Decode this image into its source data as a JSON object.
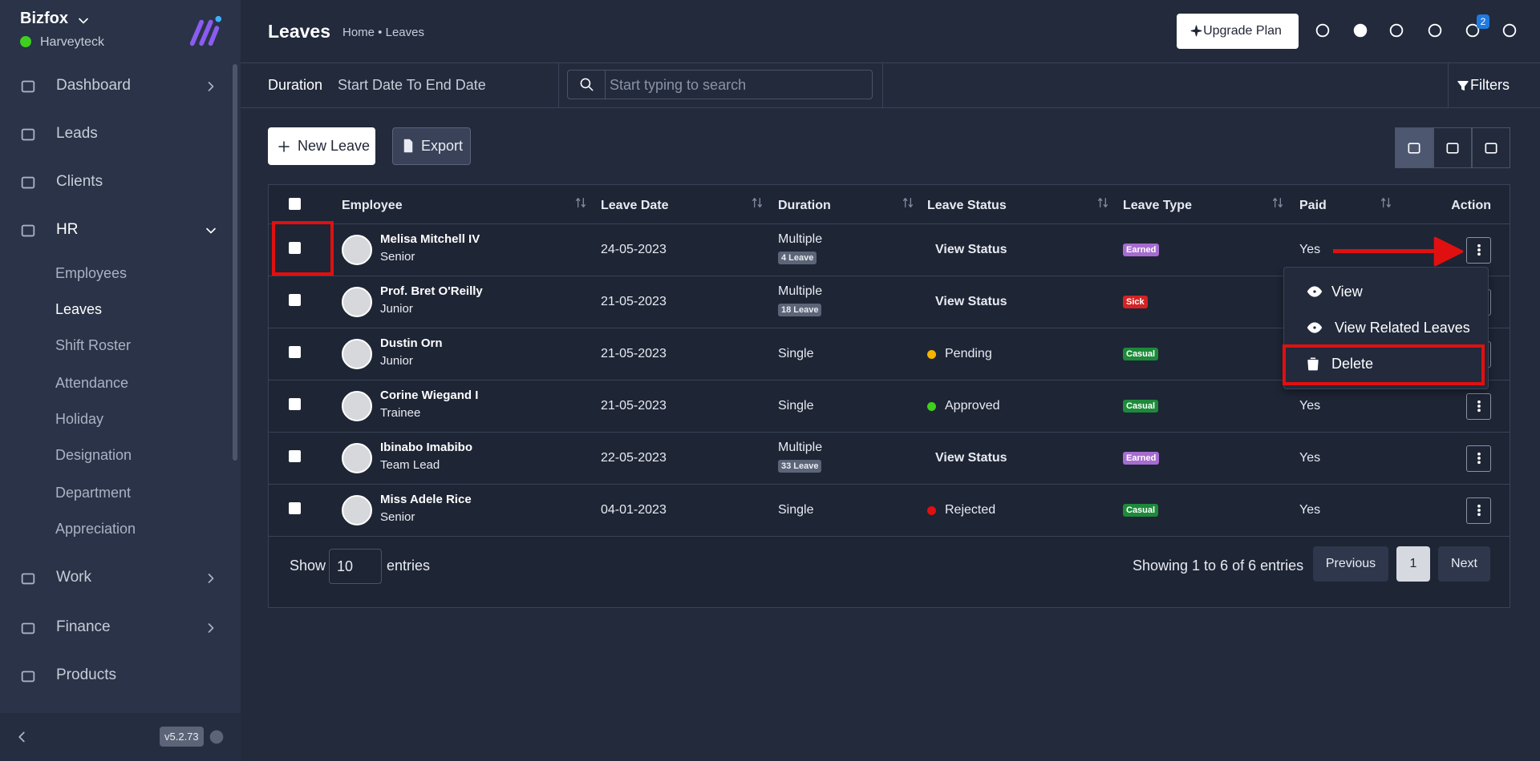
{
  "sidebar": {
    "brand": "Bizfox",
    "user": "Harveyteck",
    "menu": [
      "Dashboard",
      "Leads",
      "Clients",
      "HR"
    ],
    "hr_submenu": [
      "Employees",
      "Leaves",
      "Shift Roster",
      "Attendance",
      "Holiday",
      "Designation",
      "Department",
      "Appreciation"
    ],
    "menu_after": [
      "Work",
      "Finance",
      "Products"
    ],
    "version": "v5.2.73"
  },
  "header": {
    "title": "Leaves",
    "breadcrumb": "Home • Leaves",
    "upgrade": "Upgrade Plan",
    "notifications": "2"
  },
  "filters": {
    "duration_label": "Duration",
    "duration_value": "Start Date To End Date",
    "search_placeholder": "Start typing to search",
    "filters": "Filters"
  },
  "toolbar": {
    "new_leave": "New Leave",
    "export": "Export"
  },
  "table": {
    "columns": [
      "Employee",
      "Leave Date",
      "Duration",
      "Leave Status",
      "Leave Type",
      "Paid",
      "Action"
    ],
    "rows": [
      {
        "name": "Melisa Mitchell IV",
        "role": "Senior",
        "date": "24-05-2023",
        "duration": "Multiple",
        "leaves": "4 Leave",
        "status": "View Status",
        "type": "Earned",
        "type_color": "#a66ccf",
        "paid": "Yes"
      },
      {
        "name": "Prof. Bret O'Reilly",
        "role": "Junior",
        "date": "21-05-2023",
        "duration": "Multiple",
        "leaves": "18 Leave",
        "status": "View Status",
        "type": "Sick",
        "type_color": "#d42323"
      },
      {
        "name": "Dustin Orn",
        "role": "Junior",
        "date": "21-05-2023",
        "duration": "Single",
        "status": "Pending",
        "dot": "#f5b400",
        "type": "Casual",
        "type_color": "#1d8a3a"
      },
      {
        "name": "Corine Wiegand I",
        "role": "Trainee",
        "date": "21-05-2023",
        "duration": "Single",
        "status": "Approved",
        "dot": "#3fcf1f",
        "type": "Casual",
        "type_color": "#1d8a3a",
        "paid": "Yes"
      },
      {
        "name": "Ibinabo Imabibo",
        "role": "Team Lead",
        "date": "22-05-2023",
        "duration": "Multiple",
        "leaves": "33 Leave",
        "status": "View Status",
        "type": "Earned",
        "type_color": "#a66ccf",
        "paid": "Yes"
      },
      {
        "name": "Miss Adele Rice",
        "role": "Senior",
        "date": "04-01-2023",
        "duration": "Single",
        "status": "Rejected",
        "dot": "#e01010",
        "type": "Casual",
        "type_color": "#1d8a3a",
        "paid": "Yes"
      }
    ]
  },
  "dropdown": [
    "View",
    "View Related Leaves",
    "Delete"
  ],
  "footer": {
    "show": "Show",
    "entries_value": "10",
    "entries": "entries",
    "info": "Showing 1 to 6 of 6 entries",
    "previous": "Previous",
    "page": "1",
    "next": "Next"
  }
}
